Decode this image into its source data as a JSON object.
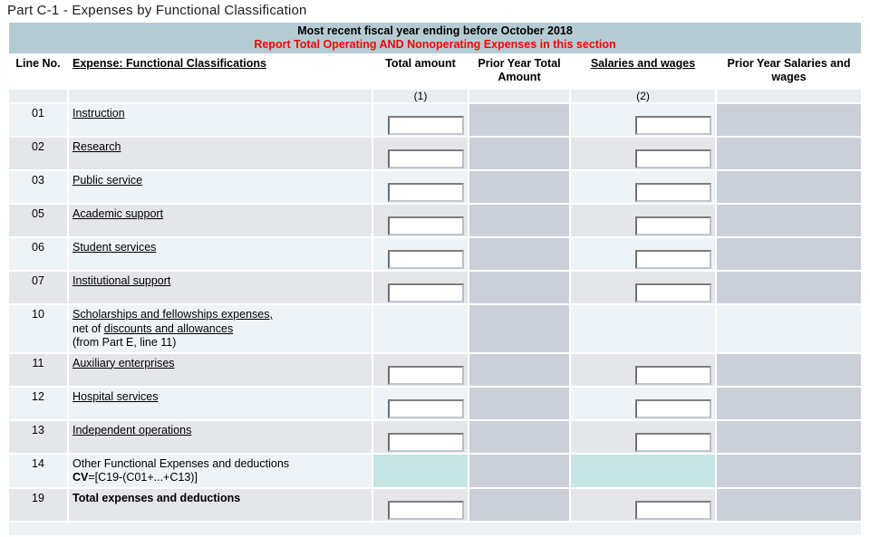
{
  "page": {
    "title": "Part C-1 - Expenses by Functional Classification"
  },
  "table": {
    "band": {
      "line1": "Most recent fiscal year ending before October 2018",
      "line2": "Report Total Operating AND Nonoperating Expenses in this section"
    },
    "columns": [
      {
        "label": "Line No."
      },
      {
        "label": "Expense: Functional Classifications"
      },
      {
        "label": "Total amount"
      },
      {
        "label": "Prior Year Total Amount"
      },
      {
        "label": "Salaries and wages"
      },
      {
        "label": "Prior Year Salaries and wages"
      }
    ],
    "subheaders": {
      "total": "(1)",
      "salaries": "(2)"
    },
    "rows": [
      {
        "line": "01",
        "shade": "light",
        "lines": [
          [
            {
              "t": "Instruction",
              "u": true
            }
          ]
        ],
        "total": "input",
        "salaries": "input",
        "py_salaries": "shaded"
      },
      {
        "line": "02",
        "shade": "dark",
        "lines": [
          [
            {
              "t": "Research",
              "u": true
            }
          ]
        ],
        "total": "input",
        "salaries": "input",
        "py_salaries": "shaded"
      },
      {
        "line": "03",
        "shade": "light",
        "lines": [
          [
            {
              "t": "Public service",
              "u": true
            }
          ]
        ],
        "total": "input",
        "salaries": "input",
        "py_salaries": "shaded"
      },
      {
        "line": "05",
        "shade": "dark",
        "lines": [
          [
            {
              "t": "Academic support",
              "u": true
            }
          ]
        ],
        "total": "input",
        "salaries": "input",
        "py_salaries": "shaded"
      },
      {
        "line": "06",
        "shade": "light",
        "lines": [
          [
            {
              "t": "Student services",
              "u": true
            }
          ]
        ],
        "total": "input",
        "salaries": "input",
        "py_salaries": "shaded"
      },
      {
        "line": "07",
        "shade": "dark",
        "lines": [
          [
            {
              "t": "Institutional support",
              "u": true
            }
          ]
        ],
        "total": "input",
        "salaries": "input",
        "py_salaries": "shaded"
      },
      {
        "line": "10",
        "shade": "light",
        "lines": [
          [
            {
              "t": "Scholarships and fellowships expenses,",
              "u": true
            }
          ],
          [
            {
              "t": "net of "
            },
            {
              "t": "discounts and allowances",
              "u": true
            }
          ],
          [
            {
              "t": "(from Part E, line 11)"
            }
          ]
        ],
        "total": "empty",
        "salaries": "empty",
        "py_salaries": "plain"
      },
      {
        "line": "11",
        "shade": "dark",
        "lines": [
          [
            {
              "t": "Auxiliary enterprises",
              "u": true
            }
          ]
        ],
        "total": "input",
        "salaries": "input",
        "py_salaries": "shaded"
      },
      {
        "line": "12",
        "shade": "light",
        "lines": [
          [
            {
              "t": "Hospital services",
              "u": true
            }
          ]
        ],
        "total": "input",
        "salaries": "input",
        "py_salaries": "shaded"
      },
      {
        "line": "13",
        "shade": "dark",
        "lines": [
          [
            {
              "t": "Independent operations",
              "u": true
            }
          ]
        ],
        "total": "input",
        "salaries": "input",
        "py_salaries": "shaded"
      },
      {
        "line": "14",
        "shade": "light",
        "lines": [
          [
            {
              "t": "Other Functional Expenses and deductions"
            }
          ],
          [
            {
              "t": "CV",
              "b": true
            },
            {
              "t": "=[C19-(C01+...+C13)]"
            }
          ]
        ],
        "total": "cv",
        "salaries": "cv",
        "py_salaries": "shaded"
      },
      {
        "line": "19",
        "shade": "dark",
        "lines": [
          [
            {
              "t": "Total expenses and deductions",
              "b": true
            }
          ]
        ],
        "total": "input",
        "salaries": "input",
        "py_salaries": "shaded"
      }
    ],
    "input_value": ""
  },
  "colors": {
    "header_band": "#b5cbd3",
    "warning_red": "#ff0000",
    "prior_year_shade": "#cbcfda",
    "cv_teal": "#c5e6e5",
    "row_light": "#eef3f7",
    "row_dark": "#e4e6ea",
    "subheader_bg": "#e9edf2",
    "footer_bg": "#edf2f6"
  }
}
